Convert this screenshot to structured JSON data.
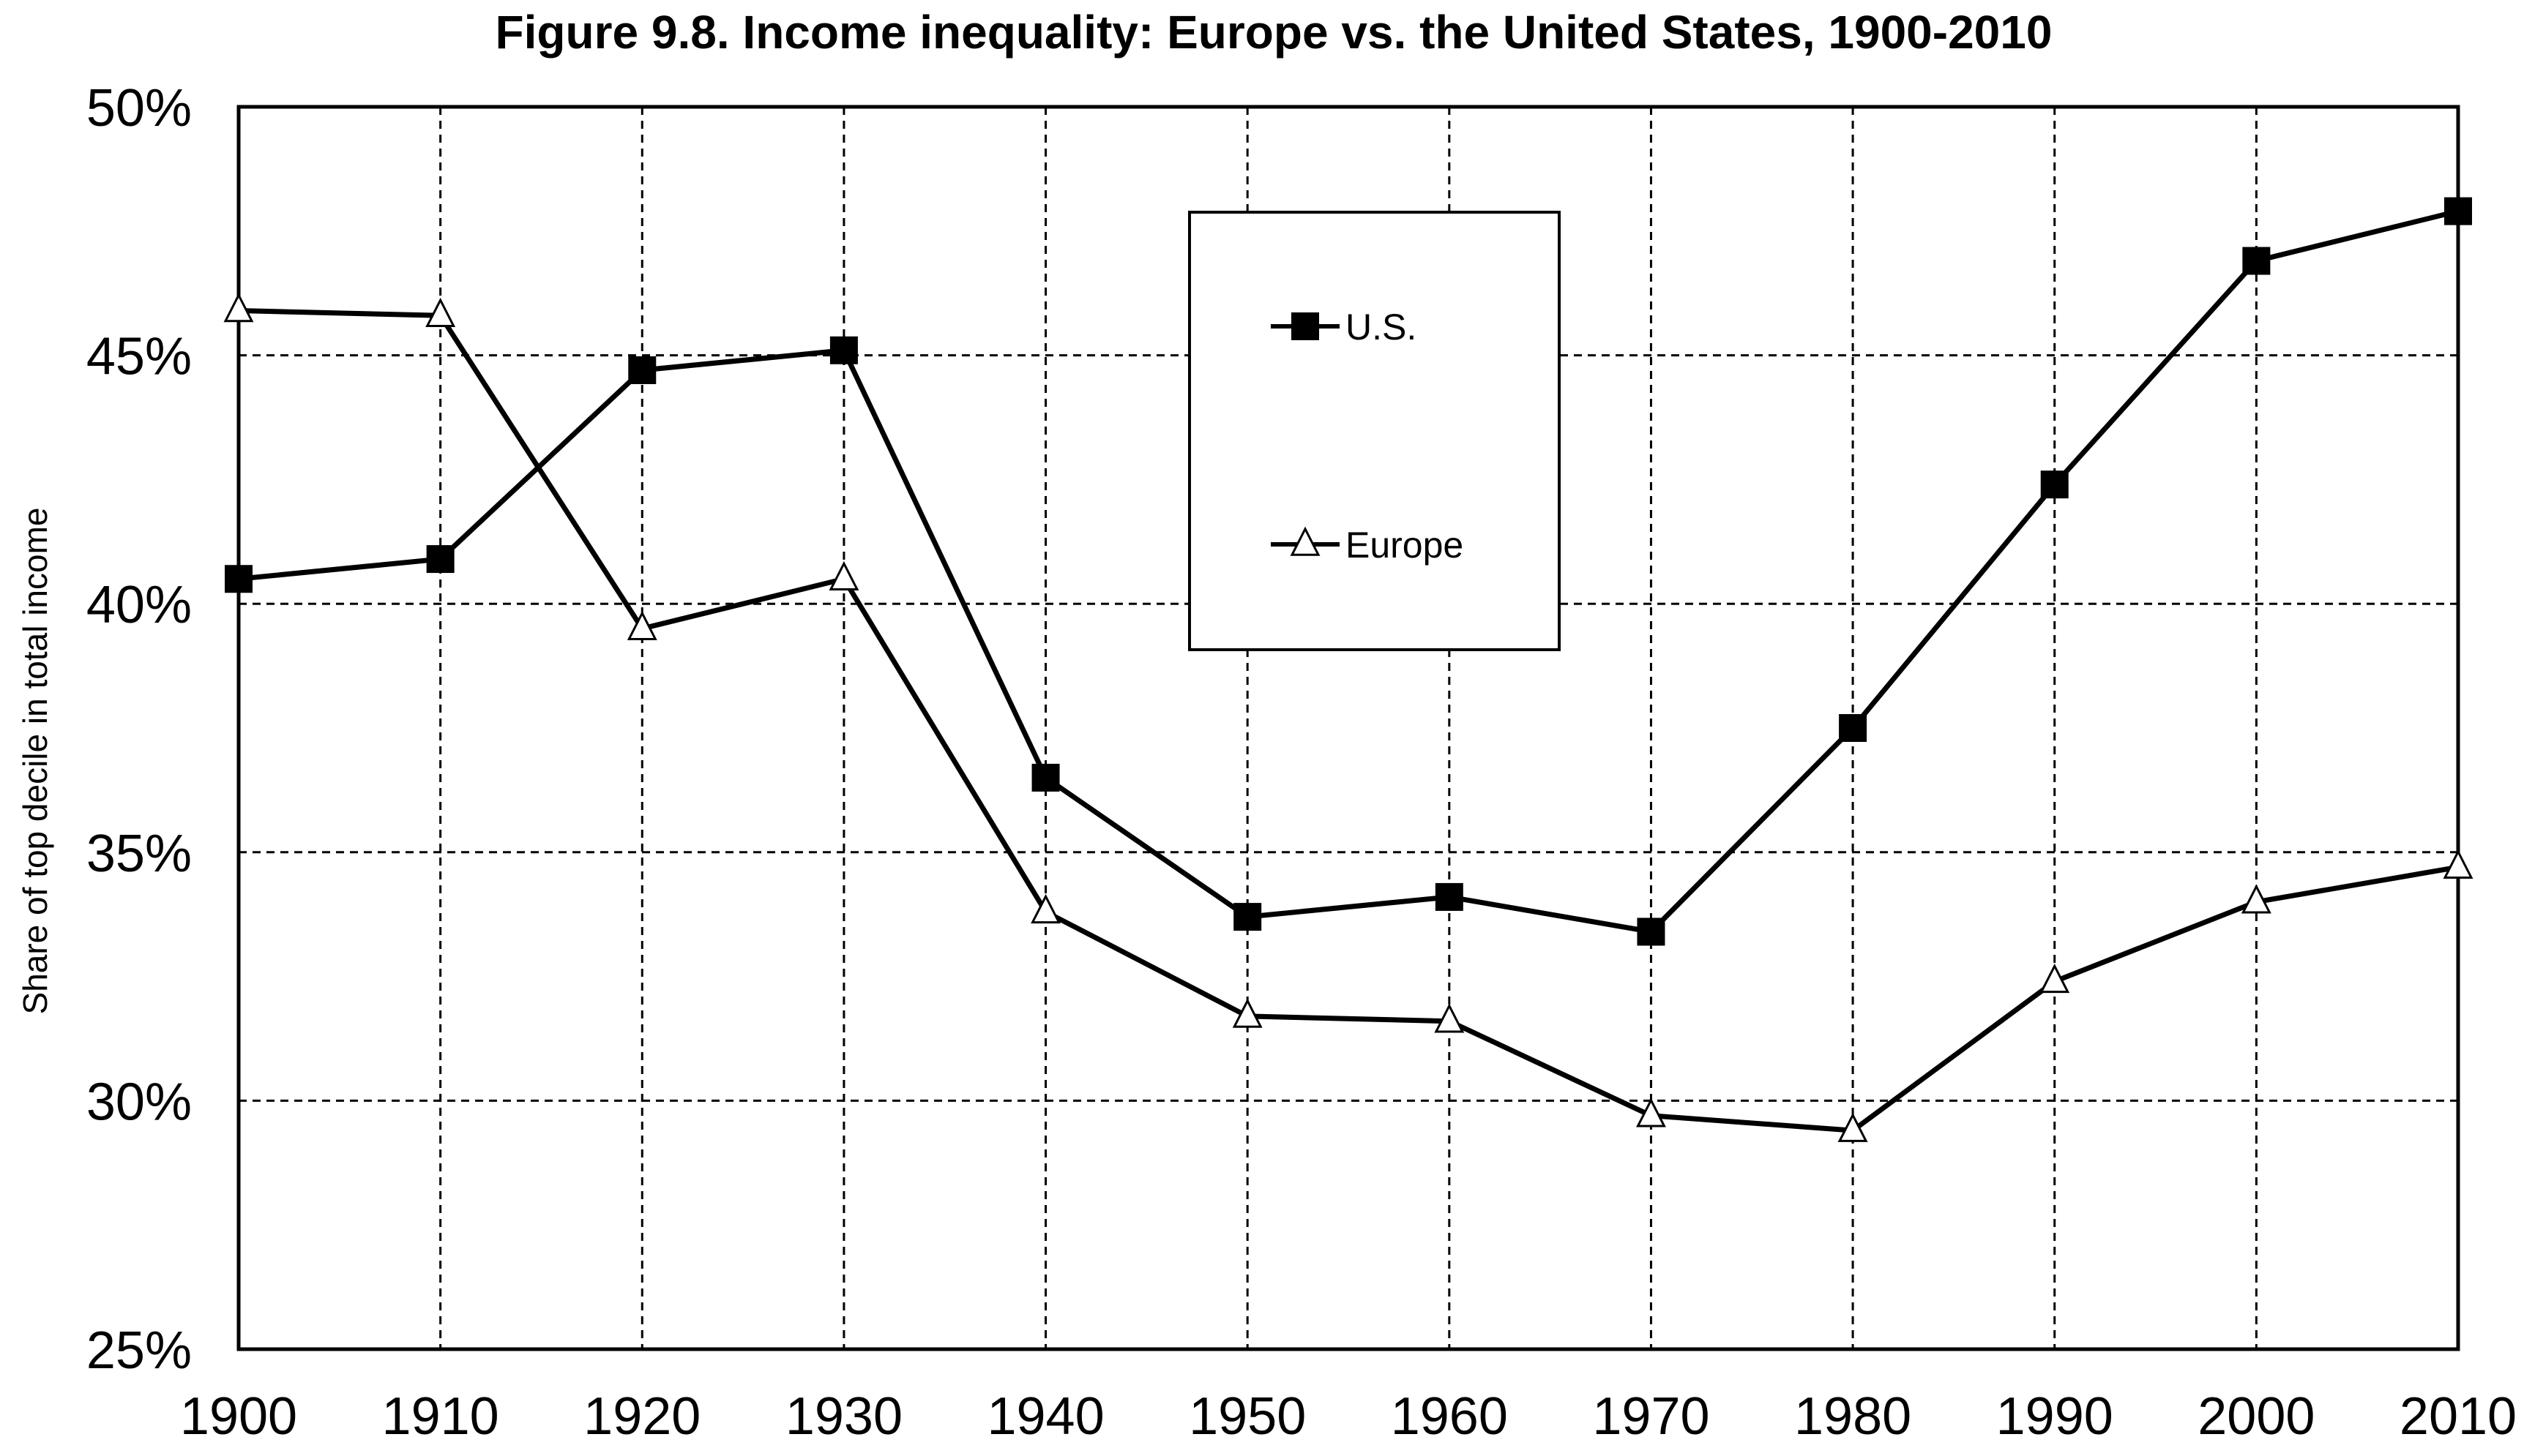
{
  "chart_data": {
    "type": "line",
    "title": "Figure 9.8. Income inequality: Europe vs. the United States, 1900-2010",
    "xlabel": "",
    "ylabel": "Share of top decile in total income",
    "x": [
      1900,
      1910,
      1920,
      1930,
      1940,
      1950,
      1960,
      1970,
      1980,
      1990,
      2000,
      2010
    ],
    "x_tick_labels": [
      "1900",
      "1910",
      "1920",
      "1930",
      "1940",
      "1950",
      "1960",
      "1970",
      "1980",
      "1990",
      "2000",
      "2010"
    ],
    "ylim": [
      0.25,
      0.5
    ],
    "y_ticks": [
      0.25,
      0.3,
      0.35,
      0.4,
      0.45,
      0.5
    ],
    "y_tick_labels": [
      "25%",
      "30%",
      "35%",
      "40%",
      "45%",
      "50%"
    ],
    "grid": true,
    "legend_position": "top-center",
    "series": [
      {
        "name": "U.S.",
        "marker": "filled-square",
        "color": "#000000",
        "values": [
          0.405,
          0.409,
          0.447,
          0.451,
          0.365,
          0.337,
          0.341,
          0.334,
          0.375,
          0.424,
          0.469,
          0.479
        ]
      },
      {
        "name": "Europe",
        "marker": "open-triangle",
        "color": "#000000",
        "values": [
          0.459,
          0.458,
          0.395,
          0.405,
          0.338,
          0.317,
          0.316,
          0.297,
          0.294,
          0.324,
          0.34,
          0.347
        ]
      }
    ]
  }
}
